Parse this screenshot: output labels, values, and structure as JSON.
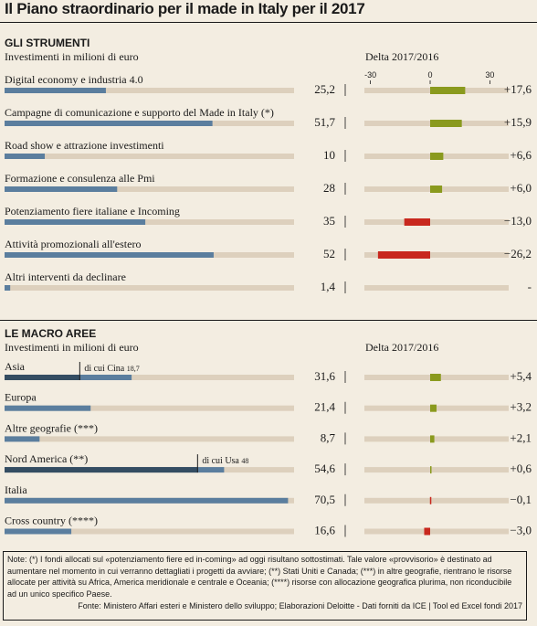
{
  "title": "Il Piano straordinario per il made in Italy per il 2017",
  "colors": {
    "background": "#f3ede1",
    "track": "#ddd0bd",
    "bar": "#5b7e9e",
    "bar_dark": "#344d62",
    "positive": "#8a9a1e",
    "negative": "#c8281e",
    "positive_text": "#6d7d12",
    "negative_text": "#b71f16"
  },
  "chart_data": [
    {
      "type": "bar",
      "section": "GLI STRUMENTI",
      "ylabel": "Investimenti in milioni di euro",
      "delta_label": "Delta 2017/2016",
      "delta_ticks": [
        "-30",
        "0",
        "30"
      ],
      "categories": [
        "Digital economy e industria 4.0",
        "Campagne di comunicazione e supporto del Made in Italy (*)",
        "Road show e attrazione investimenti",
        "Formazione e consulenza alle Pmi",
        "Potenziamento fiere italiane e Incoming",
        "Attività promozionali all'estero",
        "Altri interventi da declinare"
      ],
      "values": [
        25.2,
        51.7,
        10,
        28,
        35,
        52,
        1.4
      ],
      "value_labels": [
        "25,2",
        "51,7",
        "10",
        "28",
        "35",
        "52",
        "1,4"
      ],
      "delta": [
        17.6,
        15.9,
        6.6,
        6.0,
        -13.0,
        -26.2,
        null
      ],
      "delta_labels": [
        "+17,6",
        "+15,9",
        "+6,6",
        "+6,0",
        "−13,0",
        "−26,2",
        "-"
      ]
    },
    {
      "type": "bar",
      "section": "LE MACRO AREE",
      "ylabel": "Investimenti in milioni di euro",
      "delta_label": "Delta 2017/2016",
      "categories": [
        "Asia",
        "Europa",
        "Altre geografie (***)",
        "Nord America (**)",
        "Italia",
        "Cross country (****)"
      ],
      "values": [
        31.6,
        21.4,
        8.7,
        54.6,
        70.5,
        16.6
      ],
      "value_labels": [
        "31,6",
        "21,4",
        "8,7",
        "54,6",
        "70,5",
        "16,6"
      ],
      "sub_values": [
        18.7,
        null,
        null,
        48,
        null,
        null
      ],
      "sub_labels": [
        "di cui Cina",
        "",
        "",
        "di cui Usa",
        "",
        ""
      ],
      "sub_value_labels": [
        "18,7",
        "",
        "",
        "48",
        "",
        ""
      ],
      "delta": [
        5.4,
        3.2,
        2.1,
        0.6,
        -0.1,
        -3.0
      ],
      "delta_labels": [
        "+5,4",
        "+3,2",
        "+2,1",
        "+0,6",
        "−0,1",
        "−3,0"
      ]
    }
  ],
  "notes": "Note: (*) I fondi allocati sul «potenziamento fiere ed in-coming» ad oggi risultano sottostimati. Tale valore «provvisorio» è destinato ad aumentare nel momento in cui verranno dettagliati i progetti da avviare; (**) Stati Uniti e Canada; (***) in altre geografie, rientrano le risorse allocate per attività su Africa, America meridionale e centrale e Oceania; (****) risorse con allocazione geografica plurima, non riconducibile ad un unico specifico Paese.",
  "source": "Fonte: Ministero Affari esteri e Ministero dello sviluppo; Elaborazioni Deloitte - Dati forniti da ICE | Tool ed Excel fondi 2017"
}
